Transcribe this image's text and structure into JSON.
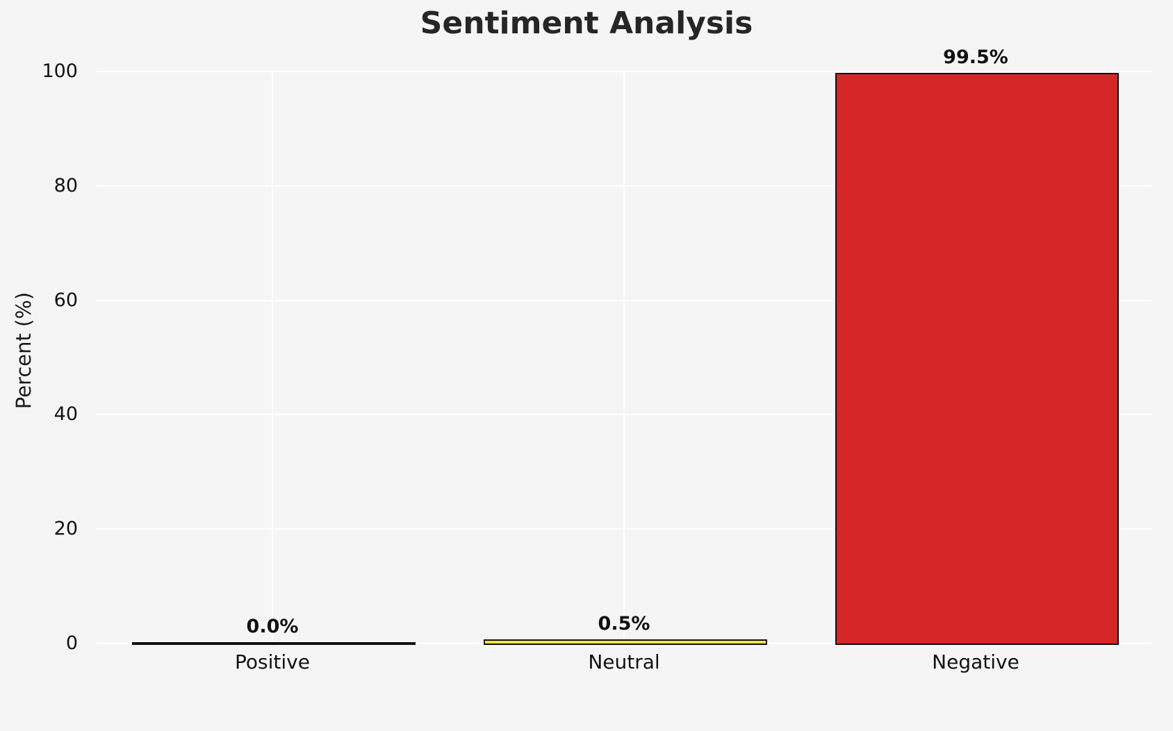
{
  "figure": {
    "background": "#f5f5f5",
    "grid_color": "#ffffff"
  },
  "chart_data": {
    "type": "bar",
    "title": "Sentiment Analysis",
    "ylabel": "Percent (%)",
    "xlabel": "",
    "categories": [
      "Positive",
      "Neutral",
      "Negative"
    ],
    "values": [
      0.0,
      0.5,
      99.5
    ],
    "value_labels": [
      "0.0%",
      "0.5%",
      "99.5%"
    ],
    "bar_colors": [
      "#4a9e4a",
      "#f0e442",
      "#d62728"
    ],
    "bar_edge_color": "#111111",
    "ylim": [
      0,
      100
    ],
    "yticks": [
      0,
      20,
      40,
      60,
      80,
      100
    ],
    "grid": true,
    "legend_position": "none"
  }
}
